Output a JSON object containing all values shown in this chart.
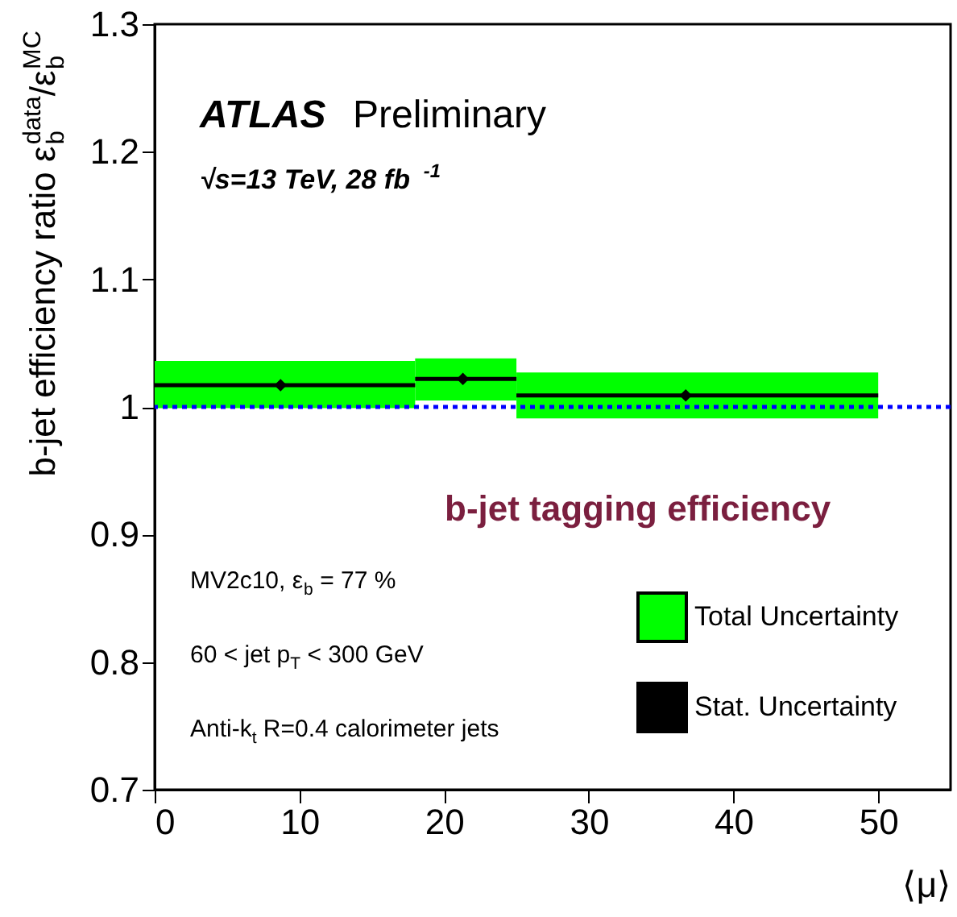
{
  "chart_data": {
    "type": "bar",
    "ylabel": "b-jet efficiency ratio ε$_{b}$$^{data}$/ε$_{b}$$^{MC}$",
    "xlabel": "⟨μ⟩",
    "xlim": [
      0,
      55
    ],
    "xticks": [
      0,
      10,
      20,
      30,
      40,
      50
    ],
    "ylim": [
      0.7,
      1.3
    ],
    "yticks": [
      {
        "value": 0.7,
        "label": "0.7"
      },
      {
        "value": 0.8,
        "label": "0.8"
      },
      {
        "value": 0.9,
        "label": "0.9"
      },
      {
        "value": 1,
        "label": "1"
      },
      {
        "value": 1.1,
        "label": "1.1"
      },
      {
        "value": 1.2,
        "label": "1.2"
      },
      {
        "value": 1.3,
        "label": "1.3"
      }
    ],
    "series": [
      {
        "name": "Total Uncertainty",
        "color": "#00ff00",
        "x": [
          9,
          21.5,
          37.5
        ],
        "xerrors": [
          [
            0,
            18
          ],
          [
            18,
            25
          ],
          [
            25,
            50
          ]
        ],
        "base": [
          0.999,
          1.005,
          0.991
        ],
        "values": [
          0.037,
          0.033,
          0.036
        ]
      },
      {
        "name": "Stat. Uncertainty",
        "type": "scatter",
        "color": "#000000",
        "marker": "diamond",
        "x": [
          8.7,
          21.3,
          36.7
        ],
        "values": [
          1.017,
          1.022,
          1.009
        ],
        "errors": [
          0.003,
          0.003,
          0.003
        ],
        "xerrors": [
          [
            0,
            18
          ],
          [
            18,
            25
          ],
          [
            25,
            50
          ]
        ]
      }
    ],
    "ref_lines": [
      {
        "axis": "y",
        "value": 1,
        "color": "#0000ff",
        "line_style": "dotted"
      }
    ],
    "annotations": [
      "ATLAS",
      "Preliminary",
      "√s=13 TeV, 28 fb$^{-1}$",
      "b-jet tagging efficiency",
      "MV2c10, ε$_{b}$ = 77 %",
      "60 < jet p$_{T}$ < 300 GeV",
      "Anti-k$_{t}$ R=0.4 calorimeter jets"
    ],
    "legend": "bottom right",
    "grid": false
  }
}
